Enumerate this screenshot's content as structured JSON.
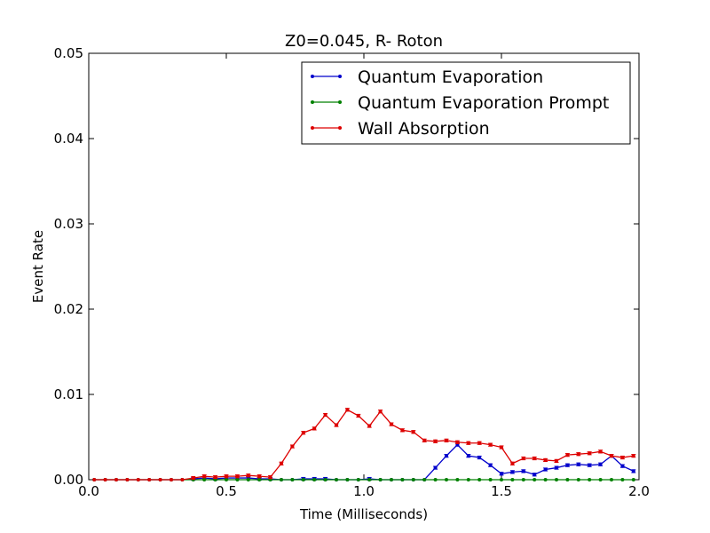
{
  "chart_data": {
    "type": "line",
    "title": "Z0=0.045, R- Roton",
    "xlabel": "Time (Milliseconds)",
    "ylabel": "Event Rate",
    "xlim": [
      0.0,
      2.0
    ],
    "ylim": [
      0.0,
      0.05
    ],
    "xticks": [
      0.0,
      0.5,
      1.0,
      1.5,
      2.0
    ],
    "xtick_labels": [
      "0.0",
      "0.5",
      "1.0",
      "1.5",
      "2.0"
    ],
    "yticks": [
      0.0,
      0.01,
      0.02,
      0.03,
      0.04,
      0.05
    ],
    "ytick_labels": [
      "0.00",
      "0.01",
      "0.02",
      "0.03",
      "0.04",
      "0.05"
    ],
    "grid": false,
    "legend_position": "top-right",
    "x": [
      0.02,
      0.06,
      0.1,
      0.14,
      0.18,
      0.22,
      0.26,
      0.3,
      0.34,
      0.38,
      0.42,
      0.46,
      0.5,
      0.54,
      0.58,
      0.62,
      0.66,
      0.7,
      0.74,
      0.78,
      0.82,
      0.86,
      0.9,
      0.94,
      0.98,
      1.02,
      1.06,
      1.1,
      1.14,
      1.18,
      1.22,
      1.26,
      1.3,
      1.34,
      1.38,
      1.42,
      1.46,
      1.5,
      1.54,
      1.58,
      1.62,
      1.66,
      1.7,
      1.74,
      1.78,
      1.82,
      1.86,
      1.9,
      1.94,
      1.98
    ],
    "series": [
      {
        "name": "Quantum Evaporation",
        "color": "#0000cc",
        "values": [
          0,
          0,
          0,
          0,
          0,
          0,
          0,
          0,
          0,
          0.0001,
          0.0002,
          0.0001,
          0.0002,
          0.0002,
          0.0002,
          0.0001,
          0.0001,
          0,
          0,
          0.0001,
          0.0001,
          0.0001,
          0,
          0,
          0,
          0.0001,
          0,
          0,
          0,
          0,
          0,
          0.0014,
          0.0028,
          0.0041,
          0.0028,
          0.0026,
          0.0017,
          0.0007,
          0.0009,
          0.001,
          0.0006,
          0.0012,
          0.0014,
          0.0017,
          0.0018,
          0.0017,
          0.0018,
          0.0028,
          0.0016,
          0.001
        ]
      },
      {
        "name": "Quantum Evaporation Prompt",
        "color": "#008000",
        "values": [
          0,
          0,
          0,
          0,
          0,
          0,
          0,
          0,
          0,
          0,
          0,
          0,
          0,
          0,
          0,
          0,
          0,
          0,
          0,
          0,
          0,
          0,
          0,
          0,
          0,
          0,
          0,
          0,
          0,
          0,
          0,
          0,
          0,
          0,
          0,
          0,
          0,
          0,
          0,
          0,
          0,
          0,
          0,
          0,
          0,
          0,
          0,
          0,
          0,
          0
        ]
      },
      {
        "name": "Wall Absorption",
        "color": "#dd0000",
        "values": [
          0,
          0,
          0,
          0,
          0,
          0,
          0,
          0,
          0,
          0.0002,
          0.0004,
          0.0003,
          0.0004,
          0.0004,
          0.0005,
          0.0004,
          0.0003,
          0.0019,
          0.0039,
          0.0055,
          0.006,
          0.0076,
          0.0064,
          0.0082,
          0.0075,
          0.0063,
          0.008,
          0.0065,
          0.0058,
          0.0056,
          0.0046,
          0.0045,
          0.0046,
          0.0044,
          0.0043,
          0.0043,
          0.0041,
          0.0038,
          0.0019,
          0.0025,
          0.0025,
          0.0023,
          0.0022,
          0.0029,
          0.003,
          0.0031,
          0.0033,
          0.0028,
          0.0026,
          0.0028
        ]
      }
    ]
  }
}
